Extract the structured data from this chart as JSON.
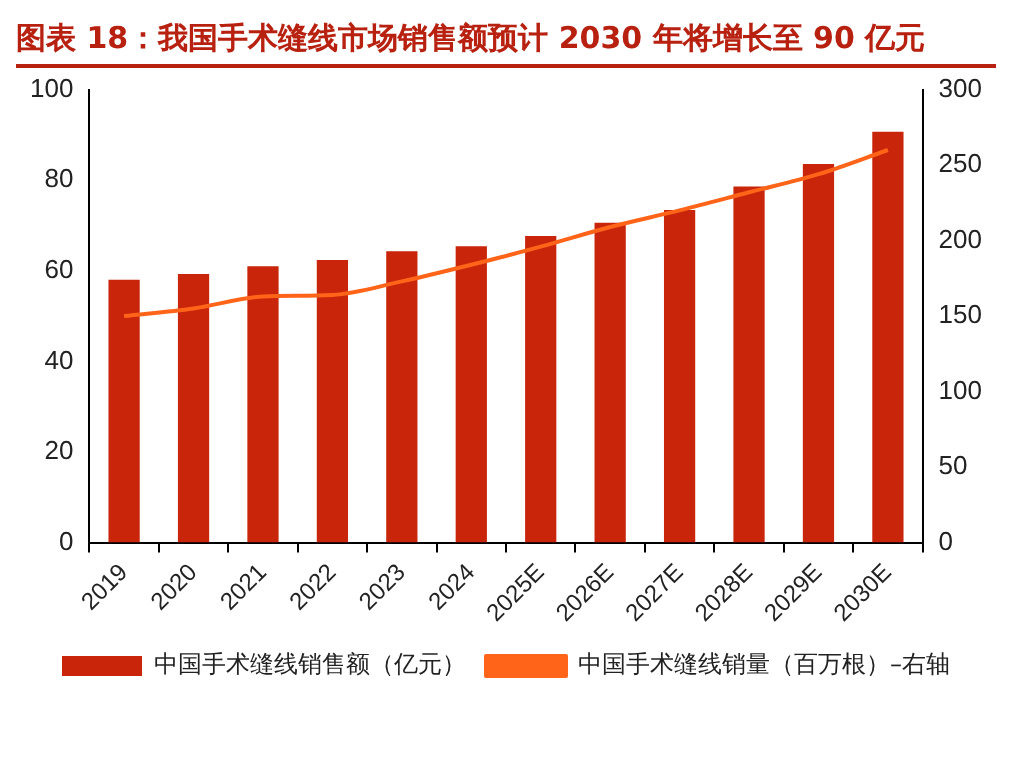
{
  "chart_data": {
    "type": "bar",
    "title": "图表 18：我国手术缝线市场销售额预计 2030 年将增长至 90 亿元",
    "categories": [
      "2019",
      "2020",
      "2021",
      "2022",
      "2023",
      "2024",
      "2025E",
      "2026E",
      "2027E",
      "2028E",
      "2029E",
      "2030E"
    ],
    "series": [
      {
        "name": "中国手术缝线销售额（亿元）",
        "color": "#c8250a",
        "values": [
          58,
          59.3,
          61,
          62.4,
          64.3,
          65.4,
          67.7,
          70.6,
          73.4,
          78.6,
          83.6,
          90.7
        ]
      },
      {
        "name": "中国手术缝线销量（百万根）–右轴",
        "type": "line",
        "axis": "y2",
        "color": "#ff6419",
        "values": [
          150,
          155,
          163,
          164,
          173,
          184,
          196,
          209,
          220,
          232,
          244,
          260
        ]
      }
    ],
    "ylim": [
      0,
      100
    ],
    "yticks": [
      0,
      20,
      40,
      60,
      80,
      100
    ],
    "y2lim": [
      0,
      300
    ],
    "y2ticks": [
      0,
      50,
      100,
      150,
      200,
      250,
      300
    ],
    "grid": false,
    "legend": "bottom",
    "marker": "none"
  }
}
